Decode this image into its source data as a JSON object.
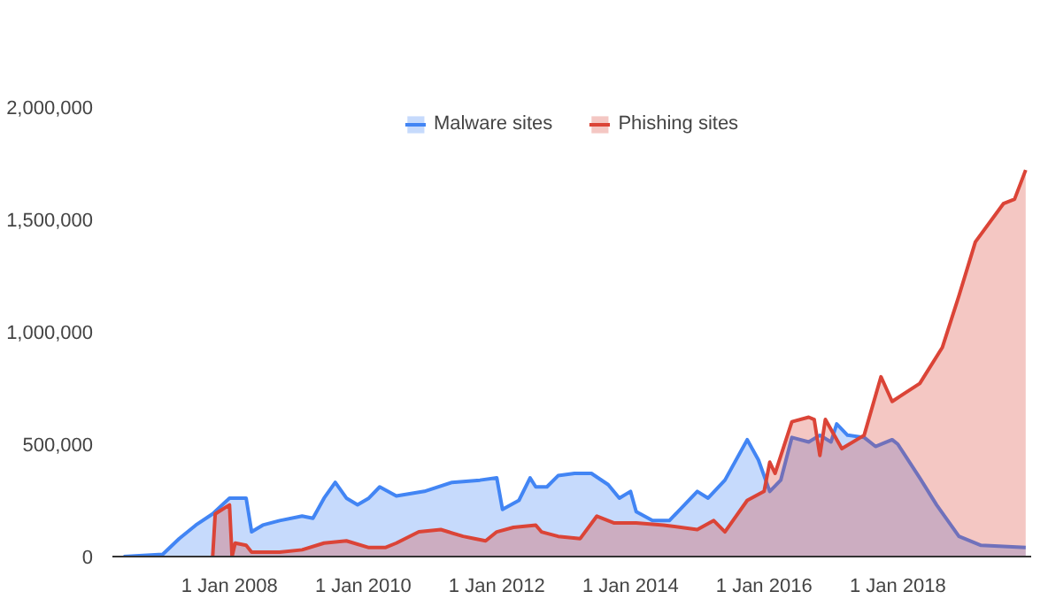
{
  "chart_data": {
    "type": "area",
    "series": [
      {
        "name": "Malware sites",
        "color": "#4285f4",
        "x": [
          "2006-06",
          "2007-01",
          "2007-04",
          "2007-07",
          "2007-10",
          "2008-01",
          "2008-04",
          "2008-05",
          "2008-07",
          "2008-10",
          "2009-02",
          "2009-04",
          "2009-06",
          "2009-08",
          "2009-10",
          "2009-12",
          "2010-02",
          "2010-04",
          "2010-07",
          "2010-12",
          "2011-05",
          "2011-10",
          "2012-01",
          "2012-02",
          "2012-05",
          "2012-07",
          "2012-08",
          "2012-10",
          "2012-12",
          "2013-03",
          "2013-06",
          "2013-09",
          "2013-11",
          "2014-01",
          "2014-02",
          "2014-05",
          "2014-08",
          "2015-01",
          "2015-03",
          "2015-06",
          "2015-10",
          "2015-12",
          "2016-02",
          "2016-04",
          "2016-06",
          "2016-09",
          "2016-11",
          "2017-01",
          "2017-02",
          "2017-04",
          "2017-07",
          "2017-09",
          "2017-12",
          "2018-01",
          "2018-05",
          "2018-08",
          "2018-12",
          "2019-04",
          "2019-12"
        ],
        "values": [
          0,
          10000,
          80000,
          140000,
          190000,
          260000,
          260000,
          110000,
          140000,
          160000,
          180000,
          170000,
          260000,
          330000,
          260000,
          230000,
          260000,
          310000,
          270000,
          290000,
          330000,
          340000,
          350000,
          210000,
          250000,
          350000,
          310000,
          310000,
          360000,
          370000,
          370000,
          320000,
          260000,
          290000,
          200000,
          160000,
          160000,
          290000,
          260000,
          340000,
          520000,
          430000,
          290000,
          340000,
          530000,
          510000,
          540000,
          510000,
          590000,
          540000,
          530000,
          490000,
          520000,
          500000,
          350000,
          230000,
          90000,
          50000,
          40000
        ]
      },
      {
        "name": "Phishing sites",
        "color": "#db4437",
        "x": [
          "2007-10-01",
          "2007-10-15",
          "2008-01-01",
          "2008-01-15",
          "2008-02",
          "2008-04",
          "2008-05",
          "2008-10",
          "2009-02",
          "2009-06",
          "2009-10",
          "2010-02",
          "2010-05",
          "2010-07",
          "2010-11",
          "2011-03",
          "2011-07",
          "2011-09",
          "2011-11",
          "2012-01",
          "2012-04",
          "2012-08",
          "2012-09",
          "2012-12",
          "2013-04",
          "2013-07",
          "2013-10",
          "2014-02",
          "2014-07",
          "2015-01",
          "2015-04",
          "2015-06",
          "2015-10",
          "2016-01",
          "2016-02",
          "2016-03",
          "2016-06",
          "2016-09",
          "2016-10",
          "2016-11",
          "2016-12",
          "2017-03",
          "2017-07",
          "2017-10",
          "2017-12",
          "2018-05",
          "2018-09",
          "2018-12",
          "2019-03",
          "2019-08",
          "2019-10",
          "2019-12"
        ],
        "values": [
          0,
          190000,
          230000,
          0,
          60000,
          50000,
          20000,
          20000,
          30000,
          60000,
          70000,
          40000,
          40000,
          60000,
          110000,
          120000,
          90000,
          80000,
          70000,
          110000,
          130000,
          140000,
          110000,
          90000,
          80000,
          180000,
          150000,
          150000,
          140000,
          120000,
          160000,
          110000,
          250000,
          290000,
          420000,
          370000,
          600000,
          620000,
          610000,
          450000,
          610000,
          480000,
          540000,
          800000,
          690000,
          770000,
          930000,
          1160000,
          1400000,
          1570000,
          1590000,
          1720000
        ]
      }
    ],
    "xlim": [
      "2006-04-01",
      "2019-12-31"
    ],
    "xticks": [
      {
        "value": "2008-01-01",
        "label": "1 Jan 2008"
      },
      {
        "value": "2010-01-01",
        "label": "1 Jan 2010"
      },
      {
        "value": "2012-01-01",
        "label": "1 Jan 2012"
      },
      {
        "value": "2014-01-01",
        "label": "1 Jan 2014"
      },
      {
        "value": "2016-01-01",
        "label": "1 Jan 2016"
      },
      {
        "value": "2018-01-01",
        "label": "1 Jan 2018"
      }
    ],
    "ylim": [
      0,
      2000000
    ],
    "yticks": [
      0,
      {
        "value": 500000,
        "label": "500,000"
      },
      {
        "value": 1000000,
        "label": "1,000,000"
      },
      {
        "value": 1500000,
        "label": "1,500,000"
      },
      {
        "value": 2000000,
        "label": "2,000,000"
      }
    ],
    "legend": "top",
    "grid": false
  }
}
